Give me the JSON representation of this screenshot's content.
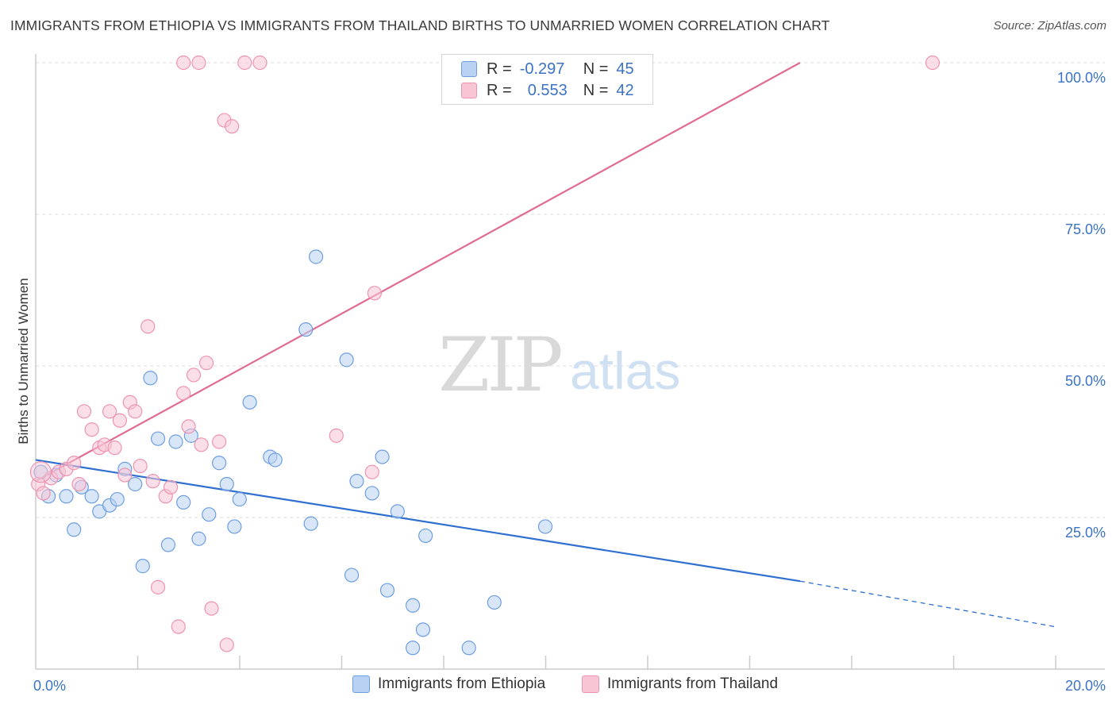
{
  "title": "IMMIGRANTS FROM ETHIOPIA VS IMMIGRANTS FROM THAILAND BIRTHS TO UNMARRIED WOMEN CORRELATION CHART",
  "source": "Source: ZipAtlas.com",
  "watermark": {
    "zip": "ZIP",
    "atlas": "atlas"
  },
  "colors": {
    "ethiopia_fill": "#b9d2f3",
    "ethiopia_stroke": "#6d9fe0",
    "ethiopia_line": "#2f6fd0",
    "thailand_fill": "#f8c5d5",
    "thailand_stroke": "#ee94b0",
    "thailand_line": "#e06b94",
    "tick_text": "#3b73c4",
    "grid": "#dddddd"
  },
  "legend": {
    "rows": [
      {
        "r_label": "R =",
        "r_value": "-0.297",
        "n_label": "N =",
        "n_value": "45"
      },
      {
        "r_label": "R =",
        "r_value": "0.553",
        "n_label": "N =",
        "n_value": "42"
      }
    ]
  },
  "chart_data": {
    "type": "scatter",
    "title": "IMMIGRANTS FROM ETHIOPIA VS IMMIGRANTS FROM THAILAND BIRTHS TO UNMARRIED WOMEN CORRELATION CHART",
    "xlabel": "",
    "ylabel": "Births to Unmarried Women",
    "xlim": [
      0,
      20
    ],
    "ylim": [
      0,
      100
    ],
    "x_tick_labels": [
      "0.0%",
      "20.0%"
    ],
    "y_ticks": [
      25,
      50,
      75,
      100
    ],
    "y_tick_labels": [
      "25.0%",
      "50.0%",
      "75.0%",
      "100.0%"
    ],
    "grid": true,
    "series": [
      {
        "name": "Immigrants from Ethiopia",
        "r": -0.297,
        "n": 45,
        "trend": {
          "x0": 0,
          "y0": 34.5,
          "x1": 15,
          "y1": 14.5,
          "dashed_to_x": 20,
          "dashed_to_y": 7.0
        },
        "points": [
          [
            0.1,
            32.5
          ],
          [
            0.25,
            28.5
          ],
          [
            0.4,
            32.0
          ],
          [
            0.6,
            28.5
          ],
          [
            0.75,
            23.0
          ],
          [
            0.9,
            30.0
          ],
          [
            1.1,
            28.5
          ],
          [
            1.25,
            26.0
          ],
          [
            1.45,
            27.0
          ],
          [
            1.6,
            28.0
          ],
          [
            1.75,
            33.0
          ],
          [
            1.95,
            30.5
          ],
          [
            2.1,
            17.0
          ],
          [
            2.25,
            48.0
          ],
          [
            2.4,
            38.0
          ],
          [
            2.6,
            20.5
          ],
          [
            2.75,
            37.5
          ],
          [
            2.9,
            27.5
          ],
          [
            3.05,
            38.5
          ],
          [
            3.2,
            21.5
          ],
          [
            3.4,
            25.5
          ],
          [
            3.6,
            34.0
          ],
          [
            3.75,
            30.5
          ],
          [
            3.9,
            23.5
          ],
          [
            4.0,
            28.0
          ],
          [
            4.2,
            44.0
          ],
          [
            4.6,
            35.0
          ],
          [
            4.7,
            34.5
          ],
          [
            5.3,
            56.0
          ],
          [
            5.4,
            24.0
          ],
          [
            5.5,
            68.0
          ],
          [
            6.1,
            51.0
          ],
          [
            6.2,
            15.5
          ],
          [
            6.3,
            31.0
          ],
          [
            6.6,
            29.0
          ],
          [
            6.8,
            35.0
          ],
          [
            6.9,
            13.0
          ],
          [
            7.1,
            26.0
          ],
          [
            7.4,
            10.5
          ],
          [
            7.6,
            6.5
          ],
          [
            7.65,
            22.0
          ],
          [
            7.4,
            3.5
          ],
          [
            8.5,
            3.5
          ],
          [
            9.0,
            11.0
          ],
          [
            10.0,
            23.5
          ]
        ]
      },
      {
        "name": "Immigrants from Thailand",
        "r": 0.553,
        "n": 42,
        "trend": {
          "x0": 0,
          "y0": 31.0,
          "x1": 15,
          "y1": 100.0
        },
        "points": [
          [
            0.05,
            30.5
          ],
          [
            0.15,
            29.0
          ],
          [
            0.3,
            31.5
          ],
          [
            0.45,
            32.5
          ],
          [
            0.6,
            33.0
          ],
          [
            0.75,
            34.0
          ],
          [
            0.85,
            30.5
          ],
          [
            0.95,
            42.5
          ],
          [
            1.1,
            39.5
          ],
          [
            1.25,
            36.5
          ],
          [
            1.35,
            37.0
          ],
          [
            1.45,
            42.5
          ],
          [
            1.55,
            36.5
          ],
          [
            1.65,
            41.0
          ],
          [
            1.75,
            32.0
          ],
          [
            1.85,
            44.0
          ],
          [
            1.95,
            42.5
          ],
          [
            2.05,
            33.5
          ],
          [
            2.2,
            56.5
          ],
          [
            2.3,
            31.0
          ],
          [
            2.4,
            13.5
          ],
          [
            2.55,
            28.5
          ],
          [
            2.65,
            30.0
          ],
          [
            2.8,
            7.0
          ],
          [
            2.9,
            45.5
          ],
          [
            3.0,
            40.0
          ],
          [
            3.1,
            48.5
          ],
          [
            3.25,
            37.0
          ],
          [
            3.35,
            50.5
          ],
          [
            3.45,
            10.0
          ],
          [
            3.6,
            37.5
          ],
          [
            3.75,
            4.0
          ],
          [
            3.7,
            90.5
          ],
          [
            3.85,
            89.5
          ],
          [
            3.2,
            100.0
          ],
          [
            4.1,
            100.0
          ],
          [
            4.4,
            100.0
          ],
          [
            5.9,
            38.5
          ],
          [
            6.6,
            32.5
          ],
          [
            6.65,
            62.0
          ],
          [
            17.6,
            100.0
          ],
          [
            2.9,
            100.0
          ]
        ]
      }
    ]
  },
  "bottom_legend": [
    "Immigrants from Ethiopia",
    "Immigrants from Thailand"
  ]
}
